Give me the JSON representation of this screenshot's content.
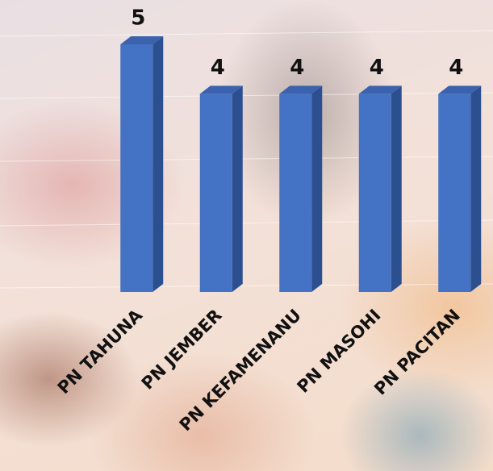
{
  "chart_data": {
    "type": "bar",
    "categories": [
      "PN TAHUNA",
      "PN JEMBER",
      "PN KEFAMENANU",
      "PN MASOHI",
      "PN PACITAN"
    ],
    "values": [
      5,
      4,
      4,
      4,
      4
    ],
    "color": "#4472c4",
    "ylim": [
      0,
      5
    ]
  }
}
